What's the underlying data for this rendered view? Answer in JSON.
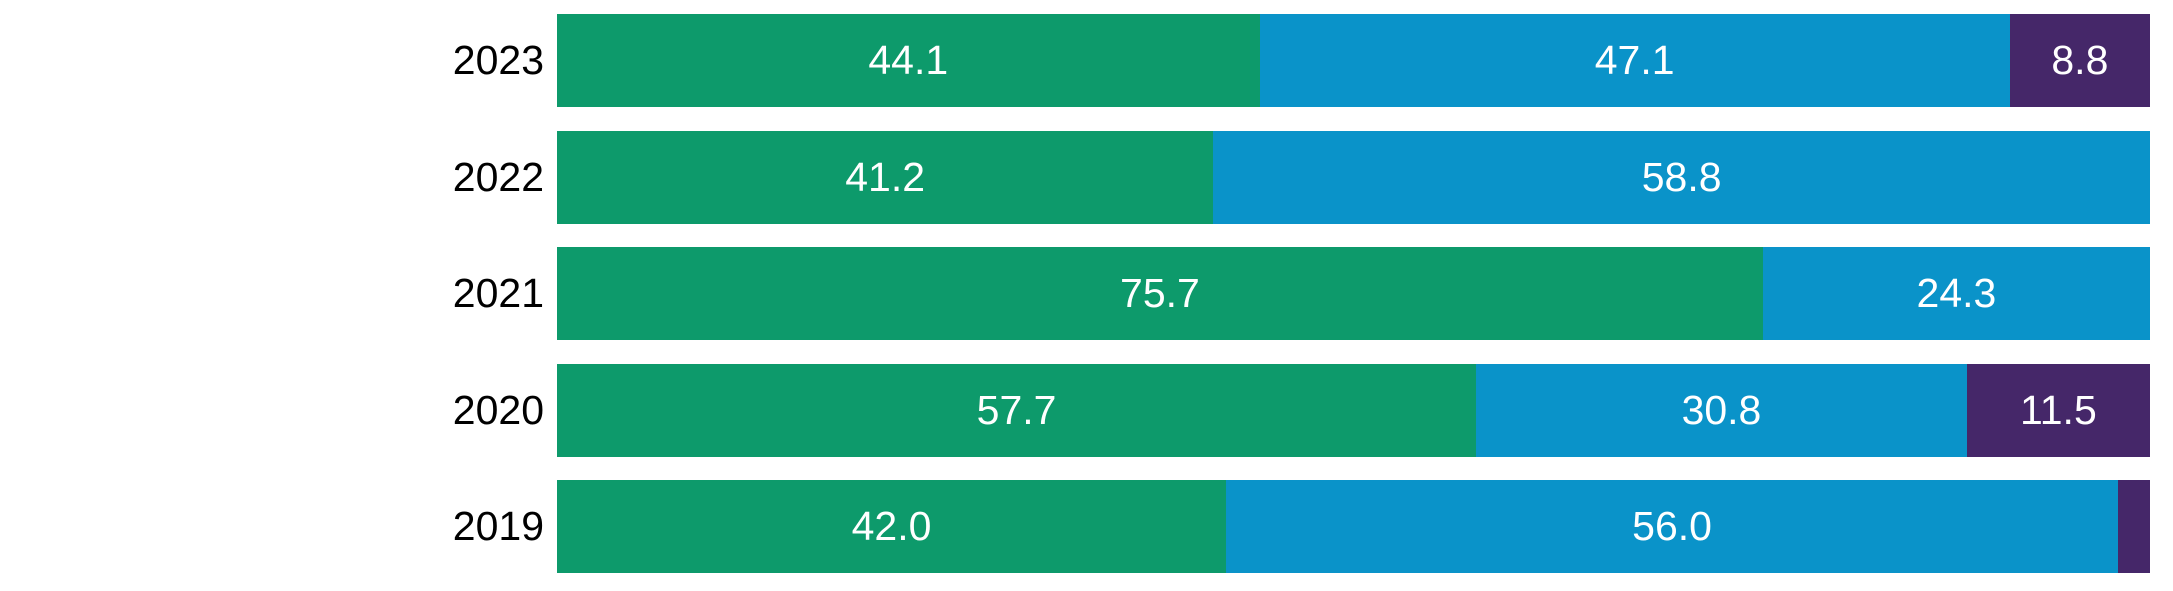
{
  "chart_data": {
    "type": "bar",
    "orientation": "horizontal",
    "stacked": true,
    "axis_range": [
      0,
      100
    ],
    "axes_visible": false,
    "grid": false,
    "legend": "none",
    "value_labels_position": "inside-center",
    "value_label_color": "#ffffff",
    "category_label_color": "#000000",
    "categories": [
      "2023",
      "2022",
      "2021",
      "2020",
      "2019"
    ],
    "series": [
      {
        "color": "#0D9A6B",
        "values": [
          44.1,
          41.2,
          75.7,
          57.7,
          42.0
        ],
        "labels": [
          "44.1",
          "41.2",
          "75.7",
          "57.7",
          "42.0"
        ]
      },
      {
        "color": "#0A93C9",
        "values": [
          47.1,
          58.8,
          24.3,
          30.8,
          56.0
        ],
        "labels": [
          "47.1",
          "58.8",
          "24.3",
          "30.8",
          "56.0"
        ]
      },
      {
        "color": "#452769",
        "values": [
          8.8,
          0,
          0,
          11.5,
          2.0
        ],
        "labels": [
          "8.8",
          "",
          "",
          "11.5",
          ""
        ]
      }
    ]
  }
}
